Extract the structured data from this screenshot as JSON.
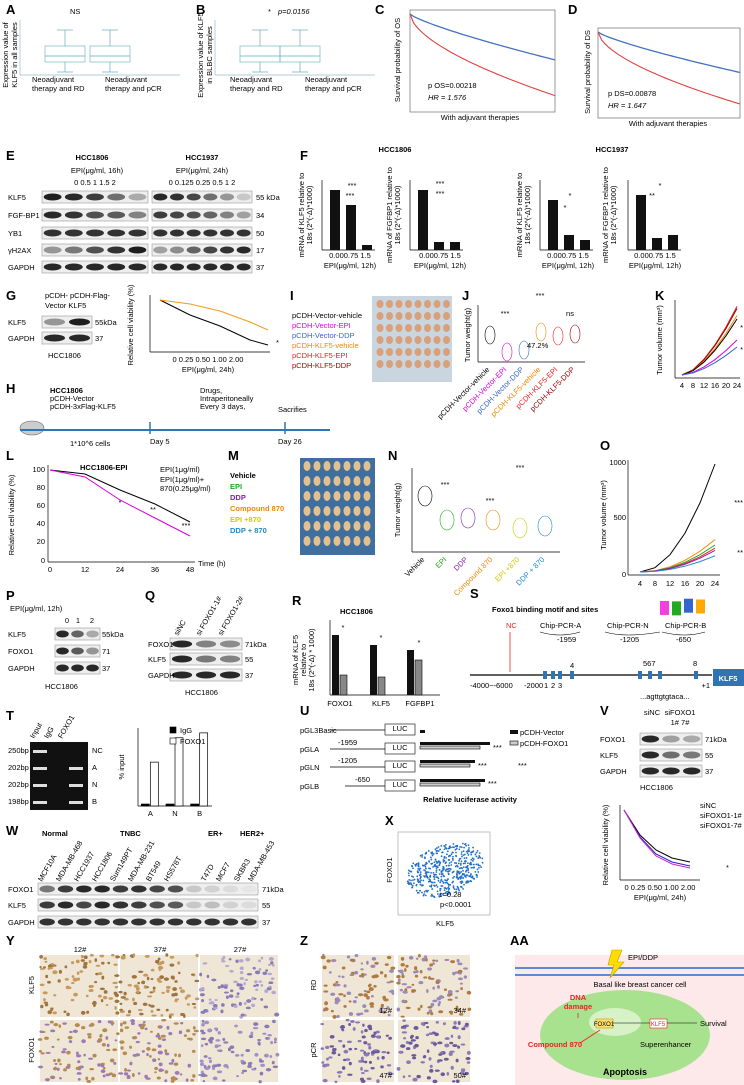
{
  "panels": {
    "A": [
      "A",
      "NS",
      "Expression value of",
      "KLF5 in all samples",
      "Neoadjuvant",
      "therapy and RD",
      "Neoadjuvant",
      "therapy and pCR"
    ],
    "B": [
      "B",
      "*",
      "p=0.0156",
      "Expression value of KLF5",
      "in BLBC samples",
      "Neoadjuvant",
      "therapy and RD",
      "Neoadjuvant",
      "therapy and pCR"
    ],
    "C": [
      "C",
      "Survival probability of OS",
      "p OS=0.00218",
      "HR = 1.576",
      "With adjuvant therapies"
    ],
    "D": [
      "D",
      "Survival probability of DS",
      "p DS=0.00878",
      "HR = 1.647",
      "With adjuvant therapies"
    ],
    "E": [
      "E",
      "HCC1806",
      "HCC1937",
      "EPI(μg/ml, 16h)",
      "EPI(μg/ml, 24h)",
      "0    0.5    1    1.5    2",
      "0  0.125 0.25 0.5   1    2",
      "KLF5",
      "FGF-BP1",
      "YB1",
      "γH2AX",
      "GAPDH",
      "55 kDa",
      "34",
      "50",
      "17",
      "37"
    ],
    "F": [
      "F",
      "HCC1806",
      "HCC1937",
      "mRNA of KLF5 relative to",
      "18s (2^(-Δ)*1000)",
      "0.000.75 1.5",
      "EPI(μg/ml, 12h)",
      "mRNA of FGFBP1 relative to",
      "18s (2^(-Δ)*1000)",
      "0.000.75 1.5",
      "EPI(μg/ml, 12h)",
      "mRNA of KLF5 relative to",
      "18s (2^(-Δ)*1000)",
      "0.000.75 1.5",
      "EPI(μg/ml, 12h)",
      "mRNA of FGFBP1 relative to",
      "18s (2^(-Δ)*1000)",
      "0.000.75 1.5",
      "EPI(μg/ml, 12h)",
      "***",
      "***",
      "***",
      "***",
      "*",
      "*",
      "**",
      "*"
    ],
    "G": [
      "G",
      "pCDH- pCDH-Flag-",
      "Vector   KLF5",
      "KLF5",
      "55kDa",
      "GAPDH",
      "37",
      "HCC1806",
      "Relative cell viability (%)",
      "0  0.25 0.50 1.00 2.00",
      "EPI(μg/ml, 24h)",
      "*"
    ],
    "H": [
      "H",
      "HCC1806",
      "pCDH-Vector",
      "pCDH-3xFlag-KLF5",
      "1*10^6 cells",
      "Day 5",
      "Drugs,",
      "Intraperitoneally",
      "Every 3 days,",
      "Sacrifies",
      "Day 26"
    ],
    "I": [
      "I",
      "pCDH-Vector-vehicle",
      "pCDH-Vector-EPI",
      "pCDH-Vector-DDP",
      "pCDH-KLF5-vehicle",
      "pCDH-KLF5-EPI",
      "pCDH-KLF5-DDP"
    ],
    "J": [
      "J",
      "Tumor weight(g)",
      "***",
      "***",
      "ns",
      "47.2%",
      "pCDH-Vector-vehicle",
      "pCDH-Vector-EPI",
      "pCDH-Vector-DDP",
      "pCDH-KLF5-vehicle",
      "pCDH-KLF5-EPI",
      "pCDH-KLF5-DDP"
    ],
    "K": [
      "K",
      "Tumor volume (mm³)",
      "4",
      "8",
      "12",
      "16",
      "20",
      "24",
      "*",
      "*"
    ],
    "L": [
      "L",
      "HCC1806-EPI",
      "EPI(1μg/ml)",
      "EPI(1μg/ml)+",
      "870(0.25μg/ml)",
      "Relative cell viability (%)",
      "100",
      "80",
      "60",
      "40",
      "20",
      "0",
      "0",
      "12",
      "24",
      "36",
      "48",
      "Time (h)",
      "*",
      "**",
      "***"
    ],
    "M": [
      "M",
      "Vehicle",
      "EPI",
      "DDP",
      "Compound 870",
      "EPI +870",
      "DDP + 870"
    ],
    "N": [
      "N",
      "Tumor weight(g)",
      "***",
      "***",
      "***",
      "Vehicle",
      "EPI",
      "DDP",
      "Compound 870",
      "EPI +870",
      "DDP + 870"
    ],
    "O": [
      "O",
      "Tumor volume (mm³)",
      "1000",
      "500",
      "0",
      "4",
      "8",
      "12",
      "16",
      "20",
      "24",
      "***",
      "**"
    ],
    "P": [
      "P",
      "EPI(μg/ml, 12h)",
      "0",
      "1",
      "2",
      "KLF5",
      "55kDa",
      "FOXO1",
      "71",
      "GAPDH",
      "37",
      "HCC1806"
    ],
    "Q": [
      "Q",
      "siNC",
      "si FOXO1-1#",
      "si FOXO1-2#",
      "FOXO1",
      "71kDa",
      "KLF5",
      "55",
      "GAPDH",
      "37",
      "HCC1806"
    ],
    "R": [
      "R",
      "HCC1806",
      "mRNA of KLF5",
      "relative to",
      "18s (2^(-Δ) * 1000)",
      "FOXO1",
      "KLF5",
      "FGFBP1",
      "*",
      "*",
      "*"
    ],
    "S": [
      "S",
      "Foxo1 binding motif and sites",
      "NC",
      "Chip-PCR-A",
      "Chip-PCR-N",
      "Chip-PCR-B",
      "-1959",
      "-1205",
      "-650",
      "-4000~-6000",
      "-2000",
      "1",
      "2",
      "3",
      "4",
      "567",
      "8",
      "+1",
      "KLF5",
      "...agttgtgtaca..."
    ],
    "T": [
      "T",
      "Input",
      "IgG",
      "FOXO1",
      "250bp",
      "NC",
      "202bp",
      "A",
      "202bp",
      "N",
      "198bp",
      "B"
    ],
    "U": [
      "U",
      "pGL3Basic",
      "pGLA",
      "pGLN",
      "pGLB",
      "-1959",
      "-1205",
      "-650",
      "LUC",
      "LUC",
      "LUC",
      "LUC",
      "pCDH-Vector",
      "pCDH-FOXO1",
      "Relative luciferase activity",
      "***",
      "***",
      "***",
      "***"
    ],
    "V": [
      "V",
      "siNC",
      "siFOXO1",
      "1# 7#",
      "FOXO1",
      "71kDa",
      "KLF5",
      "55",
      "GAPDH",
      "37",
      "HCC1806",
      "siNC",
      "siFOXO1-1#",
      "siFOXO1-7#",
      "Relative cell viability (%)",
      "0  0.25 0.50 1.00 2.00",
      "EPI(μg/ml, 24h)",
      "*"
    ],
    "W": [
      "W",
      "Normal",
      "TNBC",
      "ER+",
      "HER2+",
      "MCF10A",
      "MDA-MB-468",
      "HCC1937",
      "HCC1806",
      "Sum149PT",
      "MDA-MB-231",
      "BT549",
      "HS578T",
      "T47D",
      "MCF7",
      "SKBR3",
      "MDA-MB-453",
      "FOXO1",
      "KLF5",
      "GAPDH",
      "71kDa",
      "55",
      "37"
    ],
    "X": [
      "X",
      "FOXO1",
      "KLF5",
      "r=0.28",
      "p<0.0001"
    ],
    "Y": [
      "Y",
      "12#",
      "37#",
      "27#",
      "KLF5",
      "FOXO1"
    ],
    "Z": [
      "Z",
      "RD",
      "pCR",
      "12#",
      "34#",
      "47#",
      "50#"
    ],
    "AA": [
      "AA",
      "EPI/DDP",
      "Basal like breast cancer cell",
      "DNA",
      "damage",
      "FOXO1",
      "KLF5",
      "Survival",
      "Compound 870",
      "Superenhancer",
      "Apoptosis"
    ]
  },
  "chart_data": {
    "type": "bar",
    "y_label": "% input",
    "categories": [
      "A",
      "N",
      "B"
    ],
    "ylim": [
      0,
      0.8
    ],
    "series": [
      {
        "name": "IgG",
        "color": "#000000",
        "values": [
          0.02,
          0.02,
          0.02
        ]
      },
      {
        "name": "FOXO1",
        "color": "#ffffff",
        "values": [
          0.45,
          0.7,
          0.75
        ]
      }
    ]
  }
}
